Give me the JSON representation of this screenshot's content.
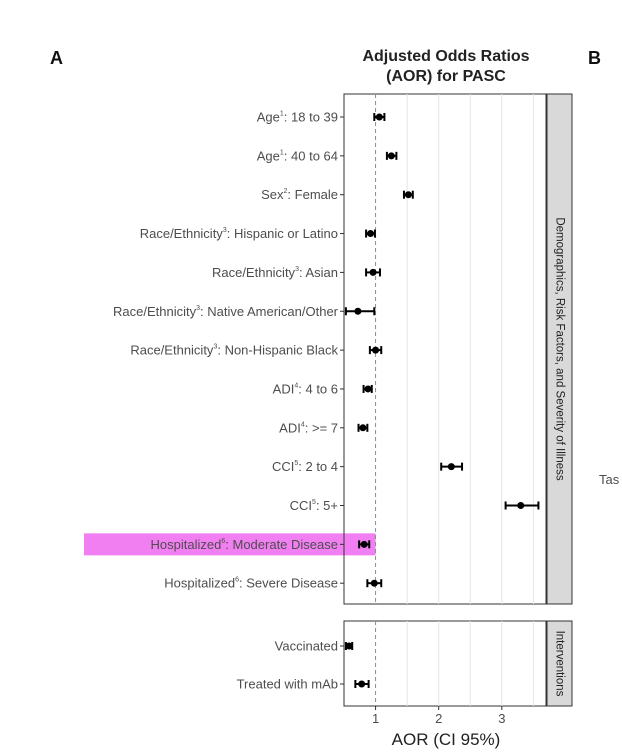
{
  "panels": {
    "a": "A",
    "b": "B"
  },
  "cut_text": "Tas",
  "chart_data": {
    "type": "scatter",
    "title": "Adjusted Odds Ratios (AOR) for PASC",
    "title_lines": [
      "Adjusted Odds Ratios",
      "(AOR) for PASC"
    ],
    "xlabel": "AOR (CI 95%)",
    "xlim": [
      0.5,
      3.7
    ],
    "xticks": [
      1,
      2,
      3
    ],
    "reference_line": 1,
    "grid": true,
    "highlight_color": "#f27ff2",
    "facets": [
      {
        "label": "Demographics, Risk Factors, and Severity of Illness",
        "rows": [
          {
            "name": "Age",
            "sup": "1",
            "rest": ": 18 to 39",
            "aor": 1.06,
            "lo": 0.98,
            "hi": 1.14,
            "highlight": false
          },
          {
            "name": "Age",
            "sup": "1",
            "rest": ": 40 to 64",
            "aor": 1.25,
            "lo": 1.18,
            "hi": 1.33,
            "highlight": false
          },
          {
            "name": "Sex",
            "sup": "2",
            "rest": ": Female",
            "aor": 1.52,
            "lo": 1.45,
            "hi": 1.59,
            "highlight": false
          },
          {
            "name": "Race/Ethnicity",
            "sup": "3",
            "rest": ": Hispanic or Latino",
            "aor": 0.92,
            "lo": 0.85,
            "hi": 0.99,
            "highlight": false
          },
          {
            "name": "Race/Ethnicity",
            "sup": "3",
            "rest": ": Asian",
            "aor": 0.96,
            "lo": 0.85,
            "hi": 1.07,
            "highlight": false
          },
          {
            "name": "Race/Ethnicity",
            "sup": "3",
            "rest": ": Native American/Other",
            "aor": 0.72,
            "lo": 0.53,
            "hi": 0.98,
            "highlight": false
          },
          {
            "name": "Race/Ethnicity",
            "sup": "3",
            "rest": ": Non-Hispanic Black",
            "aor": 1.0,
            "lo": 0.91,
            "hi": 1.09,
            "highlight": false
          },
          {
            "name": "ADI",
            "sup": "4",
            "rest": ": 4 to 6",
            "aor": 0.88,
            "lo": 0.81,
            "hi": 0.94,
            "highlight": false
          },
          {
            "name": "ADI",
            "sup": "4",
            "rest": ": >= 7",
            "aor": 0.8,
            "lo": 0.73,
            "hi": 0.87,
            "highlight": false
          },
          {
            "name": "CCI",
            "sup": "5",
            "rest": ": 2 to 4",
            "aor": 2.2,
            "lo": 2.04,
            "hi": 2.37,
            "highlight": false
          },
          {
            "name": "CCI",
            "sup": "5",
            "rest": ": 5+",
            "aor": 3.3,
            "lo": 3.06,
            "hi": 3.58,
            "highlight": false
          },
          {
            "name": "Hospitalized",
            "sup": "6",
            "rest": ": Moderate Disease",
            "aor": 0.82,
            "lo": 0.74,
            "hi": 0.9,
            "highlight": true
          },
          {
            "name": "Hospitalized",
            "sup": "6",
            "rest": ": Severe Disease",
            "aor": 0.98,
            "lo": 0.87,
            "hi": 1.09,
            "highlight": false
          }
        ]
      },
      {
        "label": "Interventions",
        "rows": [
          {
            "name": "Vaccinated",
            "sup": "",
            "rest": "",
            "aor": 0.58,
            "lo": 0.53,
            "hi": 0.63,
            "highlight": false
          },
          {
            "name": "Treated with mAb",
            "sup": "",
            "rest": "",
            "aor": 0.78,
            "lo": 0.68,
            "hi": 0.89,
            "highlight": false
          }
        ]
      }
    ]
  }
}
